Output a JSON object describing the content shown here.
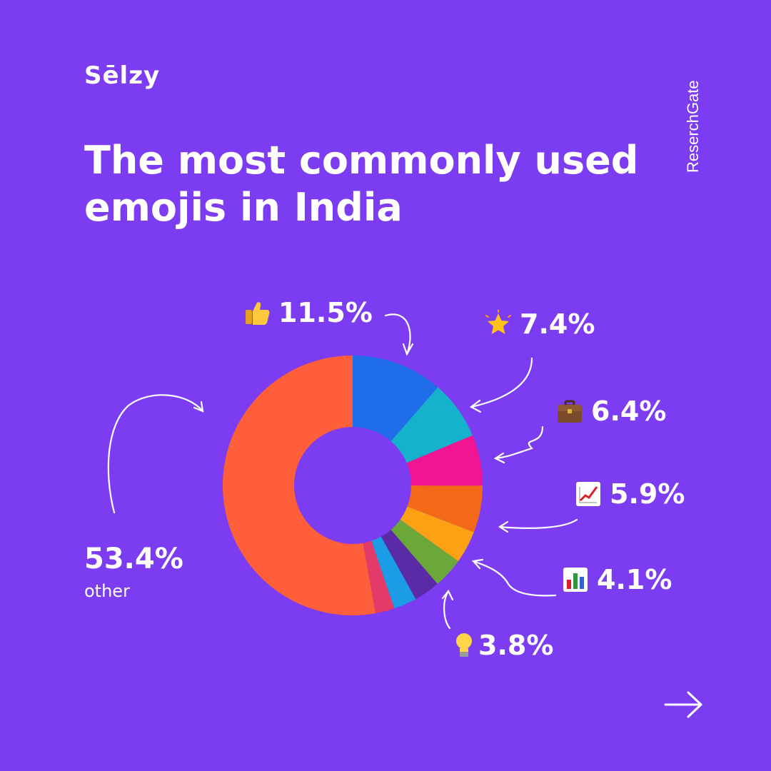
{
  "brand": "Sēlzy",
  "source": "ResеrchGate",
  "chart_data": {
    "type": "pie",
    "title": "The most commonly used emojis in India",
    "series": [
      {
        "label": "11.5%",
        "value": 11.5,
        "emoji": "thumbs-up-icon",
        "color": "#1f6de8"
      },
      {
        "label": "7.4%",
        "value": 7.4,
        "emoji": "glowing-star-icon",
        "color": "#14b2cc"
      },
      {
        "label": "6.4%",
        "value": 6.4,
        "emoji": "briefcase-icon",
        "color": "#ef1593"
      },
      {
        "label": "5.9%",
        "value": 5.9,
        "emoji": "chart-increasing-icon",
        "color": "#f46918"
      },
      {
        "label": "4.1%",
        "value": 4.1,
        "emoji": "bar-chart-icon",
        "color": "#fca114"
      },
      {
        "label": "3.8%",
        "value": 3.8,
        "emoji": "light-bulb-icon",
        "color": "#6aa83a"
      },
      {
        "label": "",
        "value": 3.3,
        "color": "#5b2aa6"
      },
      {
        "label": "",
        "value": 2.9,
        "color": "#1a9ce6"
      },
      {
        "label": "",
        "value": 2.4,
        "color": "#e33a6a"
      },
      {
        "label": "53.4%",
        "value": 53.4,
        "color": "#ff5e3a",
        "caption": "other"
      }
    ]
  },
  "colors": {
    "background": "#7c3cf2",
    "text": "#ffffff"
  },
  "nav": {
    "next_icon": "arrow-right-icon"
  }
}
